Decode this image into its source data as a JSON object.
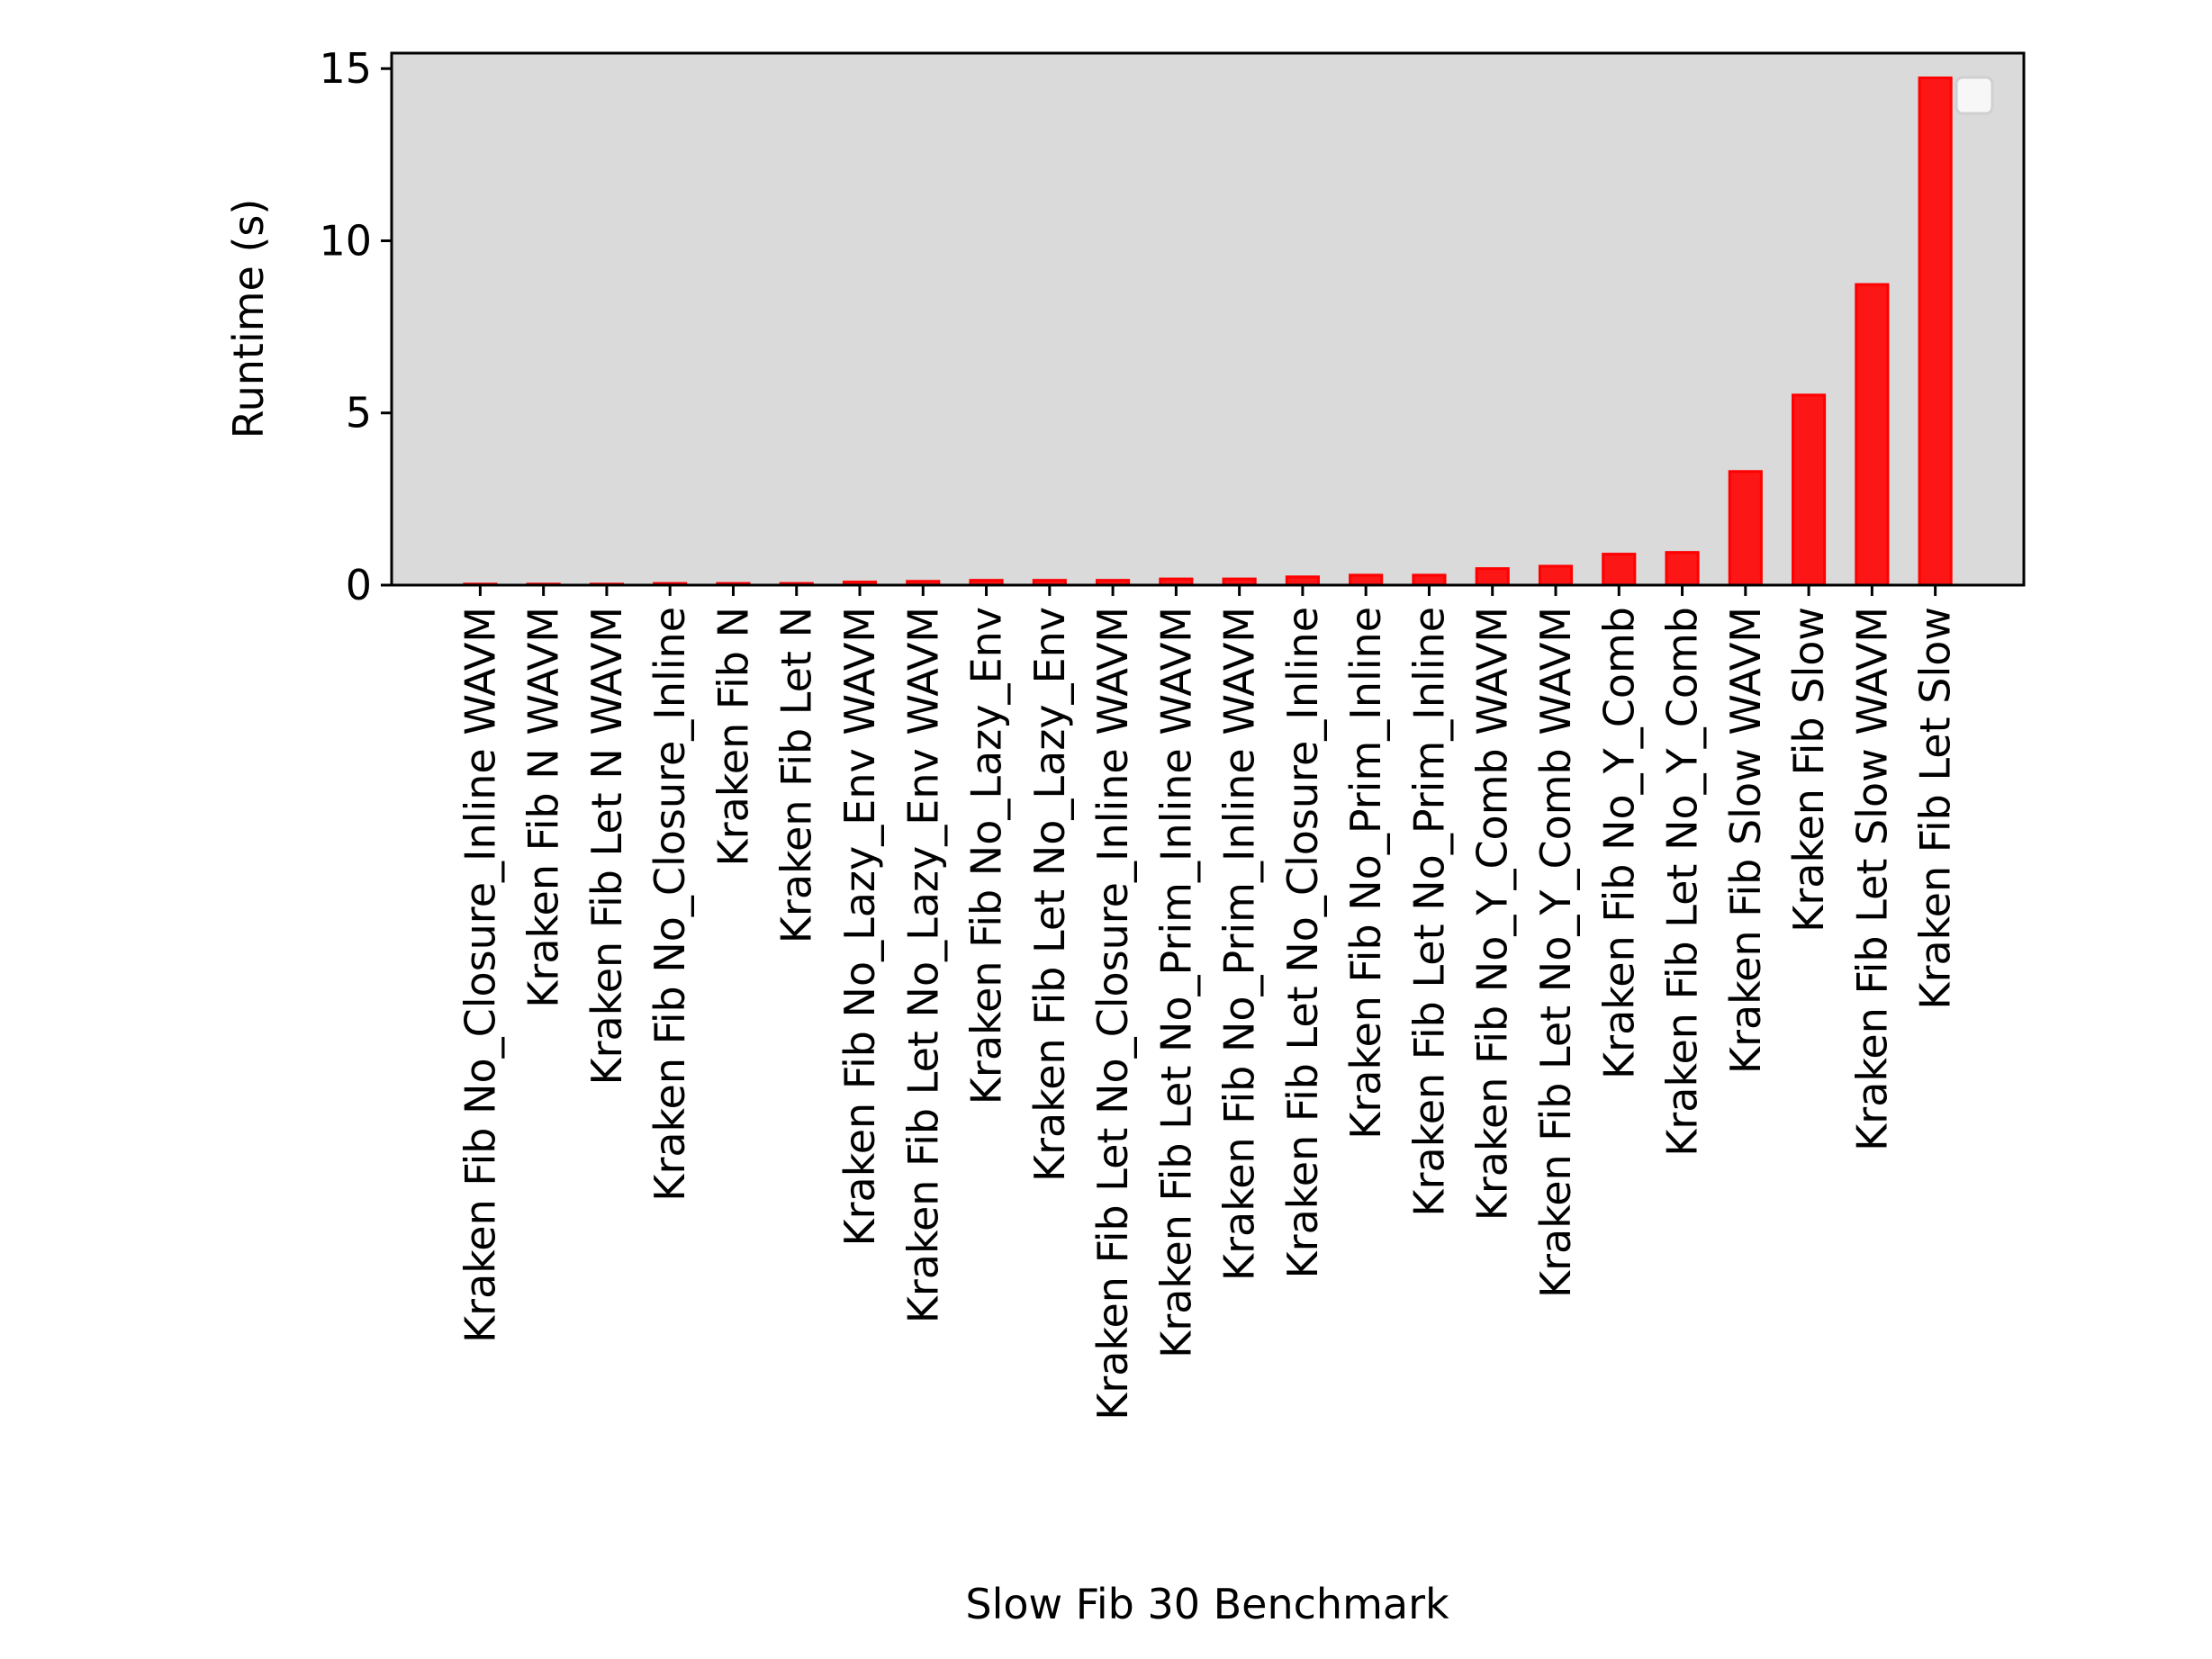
{
  "chart_data": {
    "type": "bar",
    "title": "",
    "xlabel": "Slow Fib 30 Benchmark",
    "ylabel": "Runtime (s)",
    "ylim": [
      0,
      15.45
    ],
    "yticks": [
      0,
      5,
      10,
      15
    ],
    "grid": false,
    "legend": "top-right (empty)",
    "background_color": "#dadada",
    "bar_color": "#ff0000",
    "categories": [
      "Kraken Fib No_Closure_Inline WAVM",
      "Kraken Fib N WAVM",
      "Kraken Fib Let N WAVM",
      "Kraken Fib No_Closure_Inline",
      "Kraken Fib N",
      "Kraken Fib Let N",
      "Kraken Fib No_Lazy_Env WAVM",
      "Kraken Fib Let No_Lazy_Env WAVM",
      "Kraken Fib No_Lazy_Env",
      "Kraken Fib Let No_Lazy_Env",
      "Kraken Fib Let No_Closure_Inline WAVM",
      "Kraken Fib Let No_Prim_Inline WAVM",
      "Kraken Fib No_Prim_Inline WAVM",
      "Kraken Fib Let No_Closure_Inline",
      "Kraken Fib No_Prim_Inline",
      "Kraken Fib Let No_Prim_Inline",
      "Kraken Fib No_Y_Comb WAVM",
      "Kraken Fib Let No_Y_Comb WAVM",
      "Kraken Fib No_Y_Comb",
      "Kraken Fib Let No_Y_Comb",
      "Kraken Fib Slow WAVM",
      "Kraken Fib Slow",
      "Kraken Fib Let Slow WAVM",
      "Kraken Fib Let Slow"
    ],
    "values": [
      0.03,
      0.03,
      0.03,
      0.05,
      0.05,
      0.05,
      0.09,
      0.11,
      0.14,
      0.14,
      0.14,
      0.18,
      0.18,
      0.24,
      0.29,
      0.29,
      0.48,
      0.55,
      0.9,
      0.95,
      3.3,
      5.52,
      8.73,
      14.73
    ]
  }
}
